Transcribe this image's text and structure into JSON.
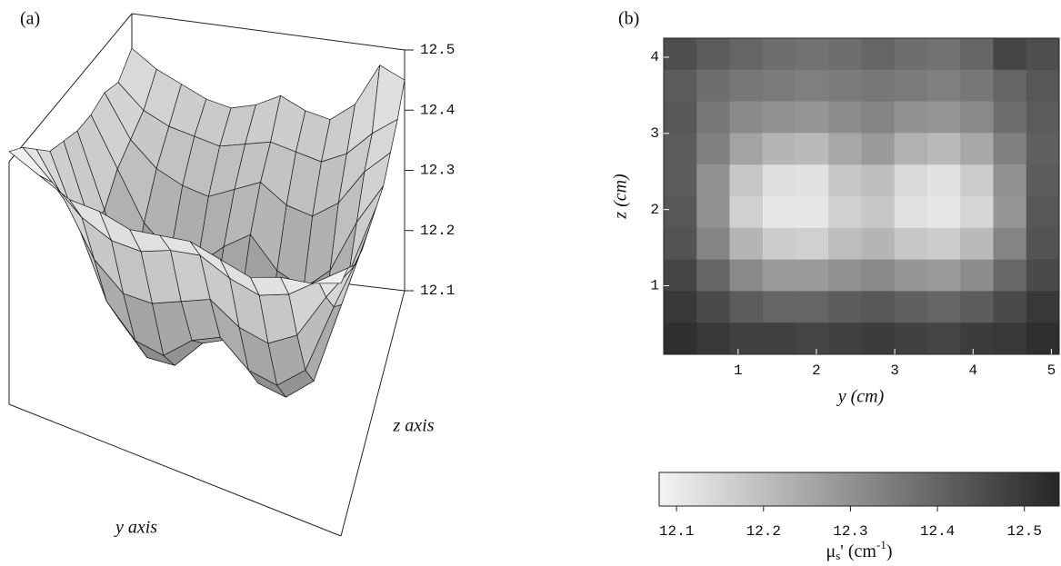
{
  "chart_data": [
    {
      "type": "surface",
      "title": "(a)",
      "xlabel": "y axis",
      "ylabel": "z axis",
      "zlim": [
        12.1,
        12.5
      ],
      "zticks": [
        12.1,
        12.2,
        12.3,
        12.4,
        12.5
      ],
      "values": [
        [
          12.45,
          12.42,
          12.4,
          12.38,
          12.37,
          12.38,
          12.4,
          12.38,
          12.37,
          12.4,
          12.47,
          12.45
        ],
        [
          12.42,
          12.38,
          12.36,
          12.35,
          12.34,
          12.35,
          12.36,
          12.35,
          12.34,
          12.36,
          12.4,
          12.43
        ],
        [
          12.43,
          12.36,
          12.32,
          12.3,
          12.29,
          12.31,
          12.33,
          12.3,
          12.29,
          12.32,
          12.38,
          12.42
        ],
        [
          12.42,
          12.34,
          12.26,
          12.22,
          12.21,
          12.25,
          12.28,
          12.23,
          12.21,
          12.25,
          12.34,
          12.41
        ],
        [
          12.42,
          12.3,
          12.18,
          12.13,
          12.12,
          12.18,
          12.2,
          12.14,
          12.12,
          12.17,
          12.3,
          12.42
        ],
        [
          12.43,
          12.3,
          12.16,
          12.11,
          12.11,
          12.16,
          12.18,
          12.12,
          12.11,
          12.15,
          12.29,
          12.43
        ],
        [
          12.44,
          12.33,
          12.22,
          12.17,
          12.16,
          12.2,
          12.22,
          12.18,
          12.17,
          12.21,
          12.33,
          12.44
        ],
        [
          12.47,
          12.4,
          12.32,
          12.28,
          12.28,
          12.3,
          12.32,
          12.29,
          12.28,
          12.31,
          12.39,
          12.46
        ],
        [
          12.5,
          12.46,
          12.42,
          12.4,
          12.4,
          12.42,
          12.43,
          12.41,
          12.4,
          12.42,
          12.46,
          12.5
        ],
        [
          12.52,
          12.5,
          12.48,
          12.48,
          12.47,
          12.48,
          12.49,
          12.48,
          12.47,
          12.49,
          12.5,
          12.52
        ]
      ]
    },
    {
      "type": "heatmap",
      "title": "(b)",
      "xlabel": "y (cm)",
      "ylabel": "z (cm)",
      "xlim": [
        0.05,
        5.1
      ],
      "ylim": [
        0.1,
        4.25
      ],
      "xticks": [
        1,
        2,
        3,
        4,
        5
      ],
      "yticks": [
        1,
        2,
        3,
        4
      ],
      "colormap": [
        "#f4f4f4",
        "#262626"
      ],
      "colorbar": {
        "lim": [
          12.08,
          12.54
        ],
        "ticks": [
          12.1,
          12.2,
          12.3,
          12.4,
          12.5
        ],
        "label_parts": [
          "μ",
          "s",
          "' (cm",
          "-1",
          ")"
        ]
      },
      "values": [
        [
          12.45,
          12.42,
          12.4,
          12.38,
          12.37,
          12.38,
          12.4,
          12.38,
          12.37,
          12.4,
          12.47,
          12.45
        ],
        [
          12.42,
          12.38,
          12.36,
          12.35,
          12.34,
          12.35,
          12.36,
          12.35,
          12.34,
          12.36,
          12.4,
          12.43
        ],
        [
          12.43,
          12.36,
          12.32,
          12.3,
          12.29,
          12.31,
          12.33,
          12.3,
          12.29,
          12.32,
          12.38,
          12.42
        ],
        [
          12.42,
          12.34,
          12.26,
          12.22,
          12.21,
          12.25,
          12.28,
          12.23,
          12.21,
          12.25,
          12.34,
          12.41
        ],
        [
          12.42,
          12.3,
          12.18,
          12.13,
          12.12,
          12.18,
          12.2,
          12.14,
          12.12,
          12.17,
          12.3,
          12.42
        ],
        [
          12.43,
          12.3,
          12.16,
          12.11,
          12.11,
          12.16,
          12.18,
          12.12,
          12.11,
          12.15,
          12.29,
          12.43
        ],
        [
          12.44,
          12.33,
          12.22,
          12.17,
          12.16,
          12.2,
          12.22,
          12.18,
          12.17,
          12.21,
          12.33,
          12.44
        ],
        [
          12.47,
          12.4,
          12.32,
          12.28,
          12.28,
          12.3,
          12.32,
          12.29,
          12.28,
          12.31,
          12.39,
          12.46
        ],
        [
          12.5,
          12.46,
          12.42,
          12.4,
          12.4,
          12.42,
          12.43,
          12.41,
          12.4,
          12.42,
          12.46,
          12.5
        ],
        [
          12.52,
          12.5,
          12.48,
          12.48,
          12.47,
          12.48,
          12.49,
          12.48,
          12.47,
          12.49,
          12.5,
          12.52
        ]
      ]
    }
  ]
}
